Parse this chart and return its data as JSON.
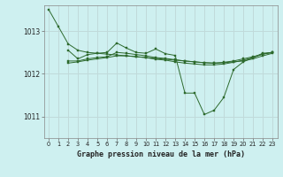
{
  "title": "Graphe pression niveau de la mer (hPa)",
  "bg_color": "#cef0f0",
  "grid_color": "#c0dada",
  "line_color": "#2d6a2d",
  "marker_color": "#2d6a2d",
  "xlim": [
    -0.5,
    23.5
  ],
  "ylim": [
    1010.5,
    1013.6
  ],
  "yticks": [
    1011,
    1012,
    1013
  ],
  "xticks": [
    0,
    1,
    2,
    3,
    4,
    5,
    6,
    7,
    8,
    9,
    10,
    11,
    12,
    13,
    14,
    15,
    16,
    17,
    18,
    19,
    20,
    21,
    22,
    23
  ],
  "series": [
    {
      "x": [
        0,
        1,
        2,
        3,
        4,
        5,
        6,
        7,
        8,
        9,
        10,
        11,
        12,
        13,
        14,
        15,
        16,
        17,
        18,
        19,
        20,
        21,
        22,
        23
      ],
      "y": [
        1013.5,
        1013.1,
        1012.7,
        1012.55,
        1012.5,
        1012.48,
        1012.46,
        1012.44,
        1012.42,
        1012.4,
        1012.38,
        1012.36,
        1012.34,
        1012.32,
        1012.3,
        1012.28,
        1012.26,
        1012.25,
        1012.26,
        1012.28,
        1012.3,
        1012.35,
        1012.42,
        1012.48
      ]
    },
    {
      "x": [
        2,
        3,
        4,
        5,
        6,
        7,
        8,
        9,
        10,
        11,
        12,
        13,
        14,
        15,
        16,
        17,
        18,
        19,
        20,
        21,
        22,
        23
      ],
      "y": [
        1012.55,
        1012.35,
        1012.45,
        1012.48,
        1012.5,
        1012.72,
        1012.6,
        1012.5,
        1012.48,
        1012.58,
        1012.47,
        1012.43,
        1011.55,
        1011.55,
        1011.05,
        1011.15,
        1011.45,
        1012.1,
        1012.28,
        1012.38,
        1012.48,
        1012.5
      ]
    },
    {
      "x": [
        2,
        3,
        4,
        5,
        6,
        7,
        8,
        9,
        10,
        11,
        12,
        13,
        14,
        15,
        16,
        17,
        18,
        19,
        20,
        21,
        22,
        23
      ],
      "y": [
        1012.3,
        1012.3,
        1012.35,
        1012.38,
        1012.4,
        1012.5,
        1012.48,
        1012.45,
        1012.42,
        1012.38,
        1012.36,
        1012.33,
        1012.3,
        1012.28,
        1012.26,
        1012.25,
        1012.27,
        1012.3,
        1012.35,
        1012.4,
        1012.46,
        1012.5
      ]
    },
    {
      "x": [
        2,
        3,
        4,
        5,
        6,
        7,
        8,
        9,
        10,
        11,
        12,
        13,
        14,
        15,
        16,
        17,
        18,
        19,
        20,
        21,
        22,
        23
      ],
      "y": [
        1012.25,
        1012.28,
        1012.32,
        1012.35,
        1012.38,
        1012.42,
        1012.42,
        1012.4,
        1012.38,
        1012.34,
        1012.32,
        1012.28,
        1012.25,
        1012.23,
        1012.21,
        1012.21,
        1012.23,
        1012.27,
        1012.32,
        1012.38,
        1012.46,
        1012.5
      ]
    }
  ]
}
